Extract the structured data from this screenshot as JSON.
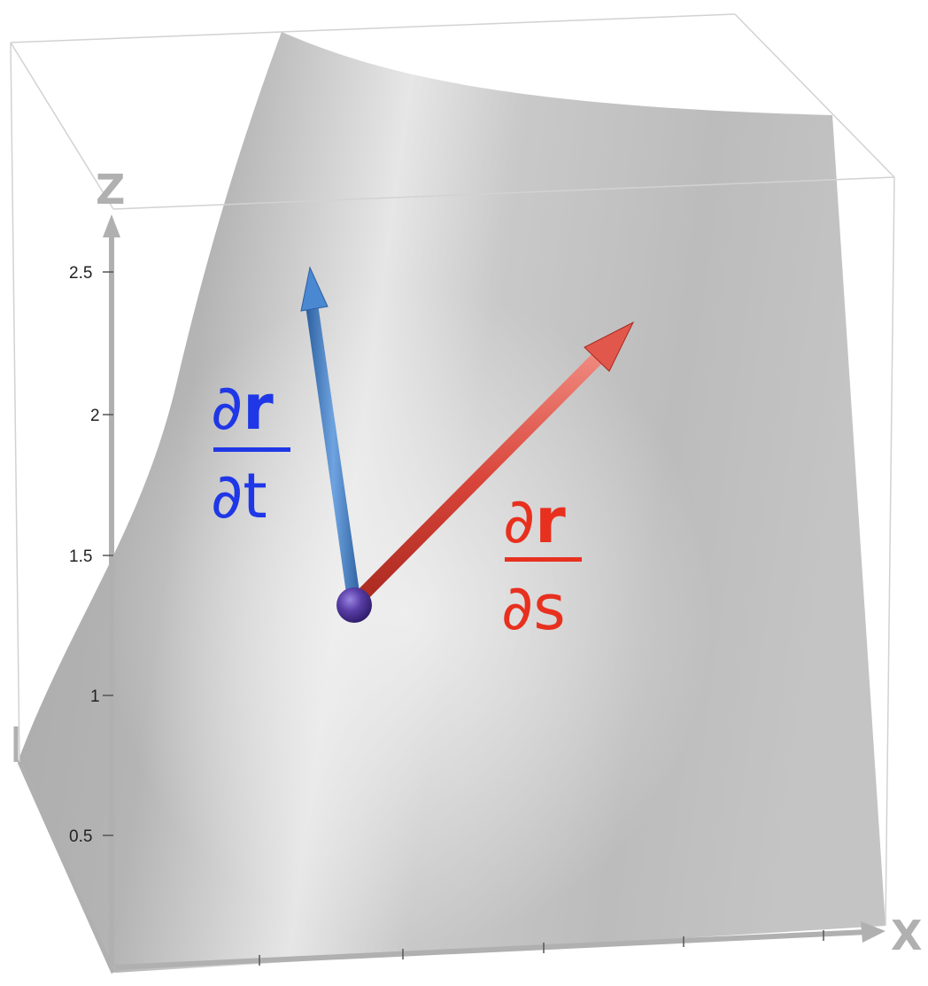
{
  "axes": {
    "z_label": "Z",
    "x_label": "X",
    "z_ticks": [
      "2.5",
      "2",
      "1.5",
      "1",
      "0.5"
    ],
    "axis_color": "#b0b0b0",
    "box_color": "#cfcfcf"
  },
  "surface": {
    "color": "#b8b8b8",
    "highlight": "#ececec"
  },
  "point": {
    "color": "#5a3fa8"
  },
  "vectors": {
    "dr_dt": {
      "color": "#3f7fc9",
      "label": {
        "numerator_d": "∂",
        "numerator_r": "r",
        "denominator": "∂t",
        "color": "#1f37e6"
      }
    },
    "dr_ds": {
      "color": "#e0473b",
      "label": {
        "numerator_d": "∂",
        "numerator_r": "r",
        "denominator": "∂s",
        "color": "#e8301f"
      }
    }
  }
}
